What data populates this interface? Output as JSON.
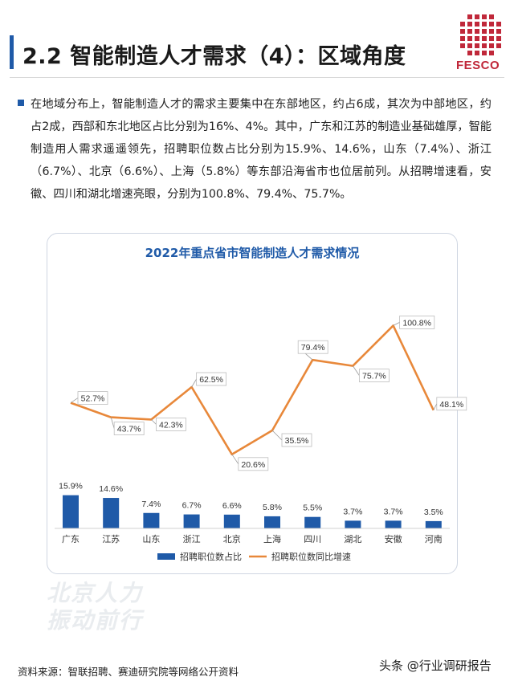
{
  "header": {
    "title": "2.2 智能制造人才需求（4）：区域角度",
    "logo_text": "FESCO",
    "accent_color": "#1f5aa8",
    "logo_color": "#c0283a"
  },
  "intro": {
    "text": "在地域分布上，智能制造人才的需求主要集中在东部地区，约占6成，其次为中部地区，约占2成，西部和东北地区占比分别为16%、4%。其中，广东和江苏的制造业基础雄厚，智能制造用人需求遥遥领先，招聘职位数占比分别为15.9%、14.6%，山东（7.4%）、浙江（6.7%）、北京（6.6%）、上海（5.8%）等东部沿海省市也位居前列。从招聘增速看，安徽、四川和湖北增速亮眼，分别为100.8%、79.4%、75.7%。"
  },
  "watermark": {
    "line1": "北京人力",
    "line2": "振动前行"
  },
  "footer": {
    "source": "资料来源：智联招聘、赛迪研究院等网络公开资料",
    "credit": "头条 @行业调研报告"
  },
  "chart_data": {
    "type": "bar+line",
    "title": "2022年重点省市智能制造人才需求情况",
    "categories": [
      "广东",
      "江苏",
      "山东",
      "浙江",
      "北京",
      "上海",
      "四川",
      "湖北",
      "安徽",
      "河南"
    ],
    "series": [
      {
        "name": "招聘职位数占比",
        "type": "bar",
        "color": "#1f5aa8",
        "values": [
          15.9,
          14.6,
          7.4,
          6.7,
          6.6,
          5.8,
          5.5,
          3.7,
          3.7,
          3.5
        ],
        "labels": [
          "15.9%",
          "14.6%",
          "7.4%",
          "6.7%",
          "6.6%",
          "5.8%",
          "5.5%",
          "3.7%",
          "3.7%",
          "3.5%"
        ]
      },
      {
        "name": "招聘职位数同比增速",
        "type": "line",
        "color": "#e8883a",
        "values": [
          52.7,
          43.7,
          42.3,
          62.5,
          20.6,
          35.5,
          79.4,
          75.7,
          100.8,
          48.1
        ],
        "labels": [
          "52.7%",
          "43.7%",
          "42.3%",
          "62.5%",
          "20.6%",
          "35.5%",
          "79.4%",
          "75.7%",
          "100.8%",
          "48.1%"
        ]
      }
    ],
    "legend_position": "bottom",
    "grid": false
  }
}
